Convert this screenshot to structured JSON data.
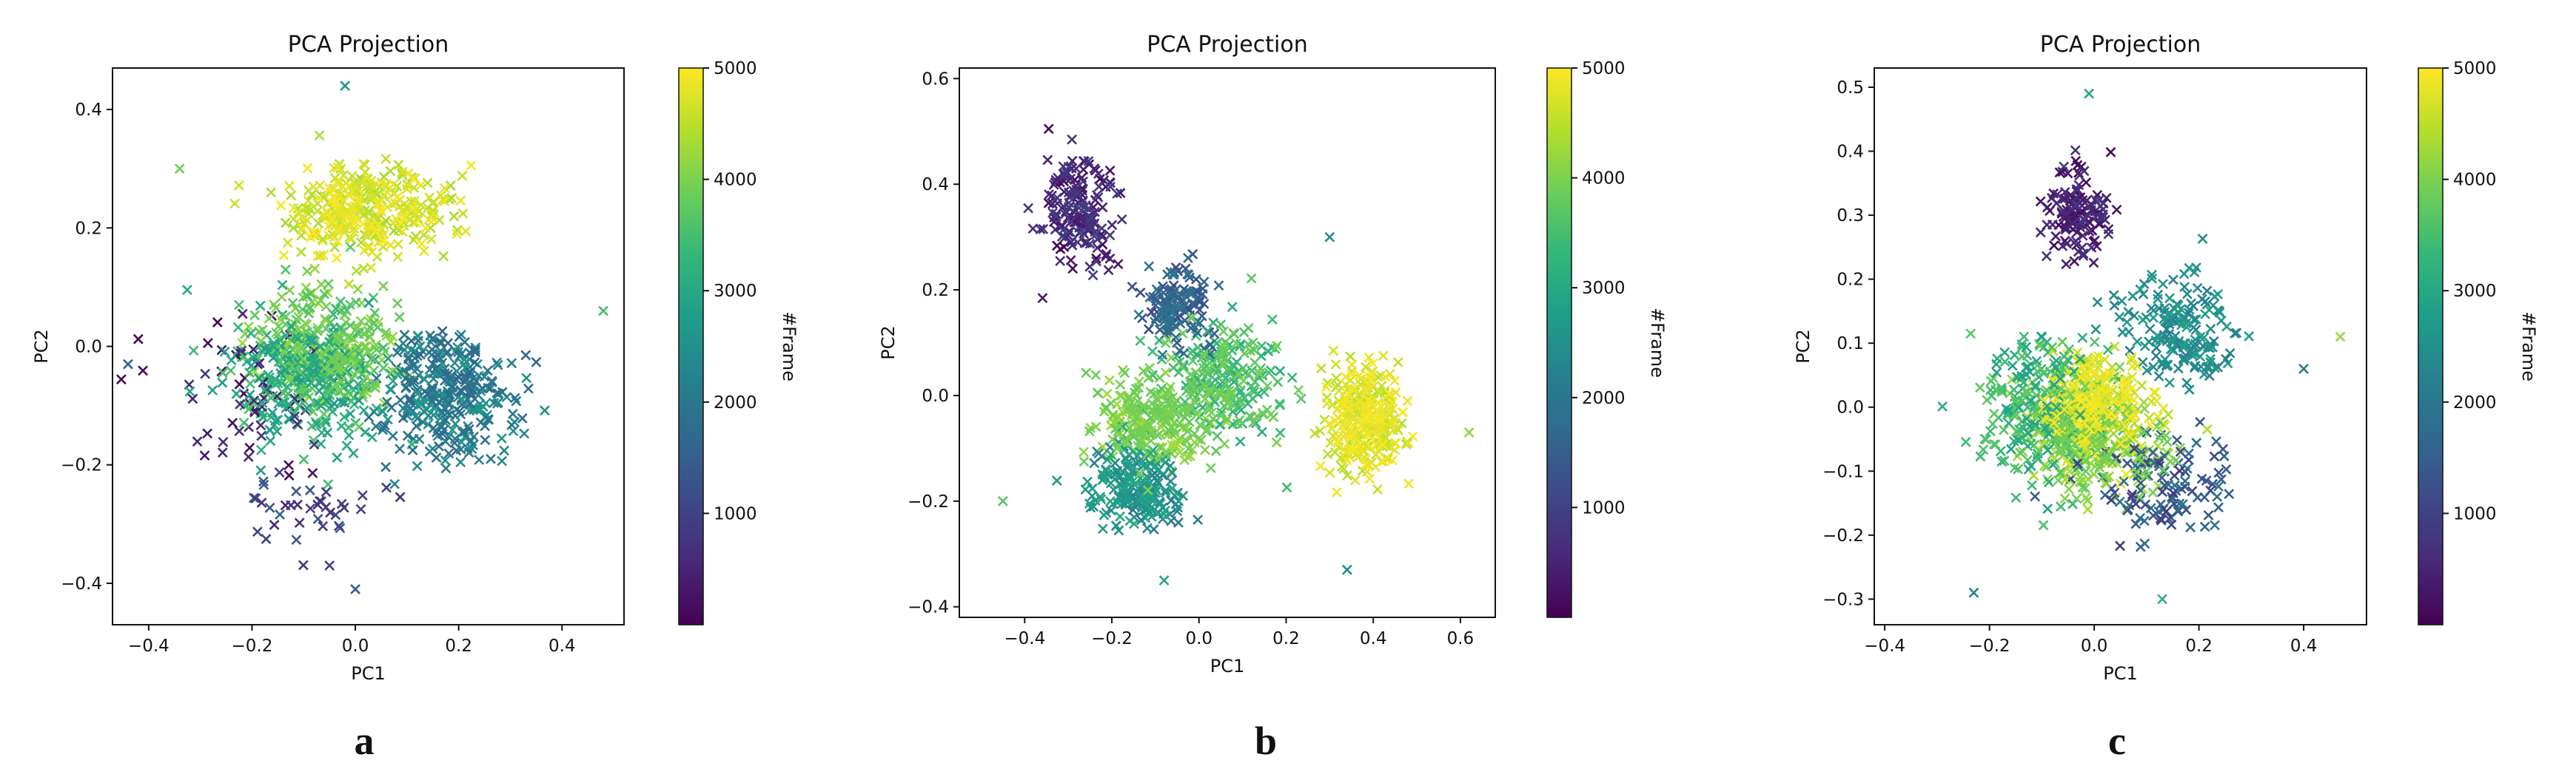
{
  "colormap": [
    "#440154",
    "#482878",
    "#3e4989",
    "#31688e",
    "#26828e",
    "#1f9e89",
    "#35b779",
    "#6ece58",
    "#b5de2b",
    "#fde725"
  ],
  "chart_data": [
    {
      "panel": "a",
      "type": "scatter",
      "marker": "x",
      "title": "PCA Projection",
      "xlabel": "PC1",
      "ylabel": "PC2",
      "xlim": [
        -0.47,
        0.52
      ],
      "ylim": [
        -0.47,
        0.47
      ],
      "xticks": [
        -0.4,
        -0.2,
        0.0,
        0.2,
        0.4
      ],
      "yticks": [
        -0.4,
        -0.2,
        0.0,
        0.2,
        0.4
      ],
      "colorbar": {
        "label": "#Frame",
        "min": 0,
        "max": 5000,
        "ticks": [
          1000,
          2000,
          3000,
          4000,
          5000
        ]
      },
      "grid": false,
      "clusters": [
        {
          "frame_range": [
            0,
            900
          ],
          "center": [
            -0.2,
            -0.1
          ],
          "spread": [
            0.14,
            0.14
          ],
          "n": 60
        },
        {
          "frame_range": [
            500,
            1600
          ],
          "center": [
            -0.1,
            -0.28
          ],
          "spread": [
            0.12,
            0.06
          ],
          "n": 35
        },
        {
          "frame_range": [
            1600,
            2700
          ],
          "center": [
            0.17,
            -0.08
          ],
          "spread": [
            0.12,
            0.1
          ],
          "n": 320
        },
        {
          "frame_range": [
            2700,
            3600
          ],
          "center": [
            -0.1,
            -0.05
          ],
          "spread": [
            0.13,
            0.1
          ],
          "n": 300
        },
        {
          "frame_range": [
            3600,
            4300
          ],
          "center": [
            -0.05,
            0.0
          ],
          "spread": [
            0.13,
            0.09
          ],
          "n": 260
        },
        {
          "frame_range": [
            4300,
            5000
          ],
          "center": [
            0.02,
            0.23
          ],
          "spread": [
            0.15,
            0.07
          ],
          "n": 340
        }
      ],
      "outliers": [
        [
          0.48,
          0.06
        ],
        [
          -0.34,
          0.3
        ],
        [
          -0.02,
          0.44
        ],
        [
          -0.05,
          -0.37
        ],
        [
          0.0,
          -0.41
        ],
        [
          -0.44,
          -0.03
        ]
      ]
    },
    {
      "panel": "b",
      "type": "scatter",
      "marker": "x",
      "title": "PCA Projection",
      "xlabel": "PC1",
      "ylabel": "PC2",
      "xlim": [
        -0.55,
        0.68
      ],
      "ylim": [
        -0.42,
        0.62
      ],
      "xticks": [
        -0.4,
        -0.2,
        0.0,
        0.2,
        0.4,
        0.6
      ],
      "yticks": [
        -0.4,
        -0.2,
        0.0,
        0.2,
        0.4,
        0.6
      ],
      "colorbar": {
        "label": "#Frame",
        "min": 0,
        "max": 5000,
        "ticks": [
          1000,
          2000,
          3000,
          4000,
          5000
        ]
      },
      "grid": false,
      "clusters": [
        {
          "frame_range": [
            0,
            1000
          ],
          "center": [
            -0.28,
            0.35
          ],
          "spread": [
            0.08,
            0.1
          ],
          "n": 170
        },
        {
          "frame_range": [
            1000,
            2000
          ],
          "center": [
            -0.05,
            0.17
          ],
          "spread": [
            0.07,
            0.07
          ],
          "n": 140
        },
        {
          "frame_range": [
            2000,
            3000
          ],
          "center": [
            -0.15,
            -0.18
          ],
          "spread": [
            0.1,
            0.07
          ],
          "n": 200
        },
        {
          "frame_range": [
            3000,
            4000
          ],
          "center": [
            0.05,
            0.02
          ],
          "spread": [
            0.14,
            0.1
          ],
          "n": 260
        },
        {
          "frame_range": [
            3800,
            4300
          ],
          "center": [
            -0.12,
            -0.05
          ],
          "spread": [
            0.12,
            0.08
          ],
          "n": 230
        },
        {
          "frame_range": [
            4400,
            5000
          ],
          "center": [
            0.38,
            -0.05
          ],
          "spread": [
            0.08,
            0.09
          ],
          "n": 290
        }
      ],
      "outliers": [
        [
          0.62,
          -0.07
        ],
        [
          -0.45,
          -0.2
        ],
        [
          0.3,
          0.3
        ],
        [
          0.34,
          -0.33
        ],
        [
          -0.08,
          -0.35
        ]
      ]
    },
    {
      "panel": "c",
      "type": "scatter",
      "marker": "x",
      "title": "PCA Projection",
      "xlabel": "PC1",
      "ylabel": "PC2",
      "xlim": [
        -0.42,
        0.52
      ],
      "ylim": [
        -0.34,
        0.53
      ],
      "xticks": [
        -0.4,
        -0.2,
        0.0,
        0.2,
        0.4
      ],
      "yticks": [
        -0.3,
        -0.2,
        -0.1,
        0.0,
        0.1,
        0.2,
        0.3,
        0.4,
        0.5
      ],
      "colorbar": {
        "label": "#Frame",
        "min": 0,
        "max": 5000,
        "ticks": [
          1000,
          2000,
          3000,
          4000,
          5000
        ]
      },
      "grid": false,
      "clusters": [
        {
          "frame_range": [
            0,
            800
          ],
          "center": [
            -0.03,
            0.3
          ],
          "spread": [
            0.06,
            0.07
          ],
          "n": 130
        },
        {
          "frame_range": [
            800,
            2000
          ],
          "center": [
            0.12,
            -0.12
          ],
          "spread": [
            0.12,
            0.07
          ],
          "n": 120
        },
        {
          "frame_range": [
            2000,
            2800
          ],
          "center": [
            0.16,
            0.12
          ],
          "spread": [
            0.1,
            0.08
          ],
          "n": 170
        },
        {
          "frame_range": [
            2800,
            3800
          ],
          "center": [
            -0.1,
            0.0
          ],
          "spread": [
            0.1,
            0.1
          ],
          "n": 260
        },
        {
          "frame_range": [
            3800,
            4400
          ],
          "center": [
            0.0,
            -0.05
          ],
          "spread": [
            0.12,
            0.08
          ],
          "n": 260
        },
        {
          "frame_range": [
            4400,
            5000
          ],
          "center": [
            0.0,
            0.0
          ],
          "spread": [
            0.09,
            0.07
          ],
          "n": 300
        }
      ],
      "outliers": [
        [
          0.47,
          0.11
        ],
        [
          -0.23,
          -0.29
        ],
        [
          0.13,
          -0.3
        ],
        [
          -0.01,
          0.49
        ],
        [
          0.4,
          0.06
        ]
      ]
    }
  ]
}
